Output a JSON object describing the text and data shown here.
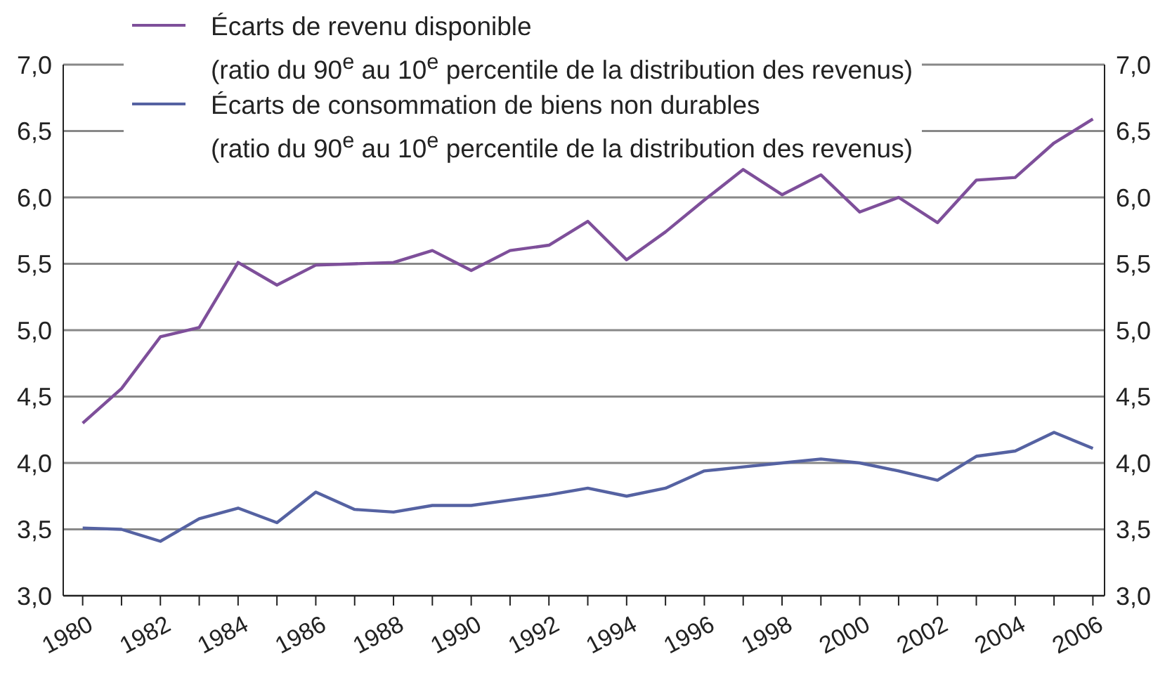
{
  "chart_data": {
    "type": "line",
    "x": [
      1980,
      1981,
      1982,
      1983,
      1984,
      1985,
      1986,
      1987,
      1988,
      1989,
      1990,
      1991,
      1992,
      1993,
      1994,
      1995,
      1996,
      1997,
      1998,
      1999,
      2000,
      2001,
      2002,
      2003,
      2004,
      2005,
      2006
    ],
    "series": [
      {
        "name": "Écarts de revenu disponible\n(ratio du 90$^{e}$ au 10$^{e}$ percentile de la distribution des revenus)",
        "color": "#7e4f9a",
        "values": [
          4.3,
          4.56,
          4.95,
          5.02,
          5.51,
          5.34,
          5.49,
          5.5,
          5.51,
          5.6,
          5.45,
          5.6,
          5.64,
          5.82,
          5.53,
          5.74,
          5.98,
          6.21,
          6.02,
          6.17,
          5.89,
          6.0,
          5.81,
          6.13,
          6.15,
          6.41,
          6.59
        ]
      },
      {
        "name": "Écarts de consommation de biens non durables\n(ratio du 90$^{e}$ au 10$^{e}$ percentile de la distribution des revenus)",
        "color": "#5562a2",
        "values": [
          3.51,
          3.5,
          3.41,
          3.58,
          3.66,
          3.55,
          3.78,
          3.65,
          3.63,
          3.68,
          3.68,
          3.72,
          3.76,
          3.81,
          3.75,
          3.81,
          3.94,
          3.97,
          4.0,
          4.03,
          4.0,
          3.94,
          3.87,
          4.05,
          4.09,
          4.23,
          4.11
        ]
      }
    ],
    "xlim": [
      1979.5,
      2006.3
    ],
    "xticks": [
      1980,
      {
        "value": 1981,
        "label": null
      },
      1982,
      {
        "value": 1983,
        "label": null
      },
      1984,
      {
        "value": 1985,
        "label": null
      },
      1986,
      {
        "value": 1987,
        "label": null
      },
      1988,
      {
        "value": 1989,
        "label": null
      },
      1990,
      {
        "value": 1991,
        "label": null
      },
      1992,
      {
        "value": 1993,
        "label": null
      },
      1994,
      {
        "value": 1995,
        "label": null
      },
      1996,
      {
        "value": 1997,
        "label": null
      },
      1998,
      {
        "value": 1999,
        "label": null
      },
      2000,
      {
        "value": 2001,
        "label": null
      },
      2002,
      {
        "value": 2003,
        "label": null
      },
      2004,
      {
        "value": 2005,
        "label": null
      },
      2006
    ],
    "ylim": [
      3,
      7
    ],
    "yticks": [
      {
        "value": 3,
        "label": "3,0"
      },
      {
        "value": 3.5,
        "label": "3,5"
      },
      {
        "value": 4,
        "label": "4,0"
      },
      {
        "value": 4.5,
        "label": "4,5"
      },
      {
        "value": 5,
        "label": "5,0"
      },
      {
        "value": 5.5,
        "label": "5,5"
      },
      {
        "value": 6,
        "label": "6,0"
      },
      {
        "value": 6.5,
        "label": "6,5"
      },
      {
        "value": 7,
        "label": "7,0"
      }
    ],
    "y2lim": [
      3,
      7
    ],
    "y2ticks": [
      {
        "value": 3,
        "label": "3,0"
      },
      {
        "value": 3.5,
        "label": "3,5"
      },
      {
        "value": 4,
        "label": "4,0"
      },
      {
        "value": 4.5,
        "label": "4,5"
      },
      {
        "value": 5,
        "label": "5,0"
      },
      {
        "value": 5.5,
        "label": "5,5"
      },
      {
        "value": 6,
        "label": "6,0"
      },
      {
        "value": 6.5,
        "label": "6,5"
      },
      {
        "value": 7,
        "label": "7,0"
      }
    ],
    "grid": "y",
    "legend": "top left",
    "marker": "none",
    "line_style": "solid"
  }
}
